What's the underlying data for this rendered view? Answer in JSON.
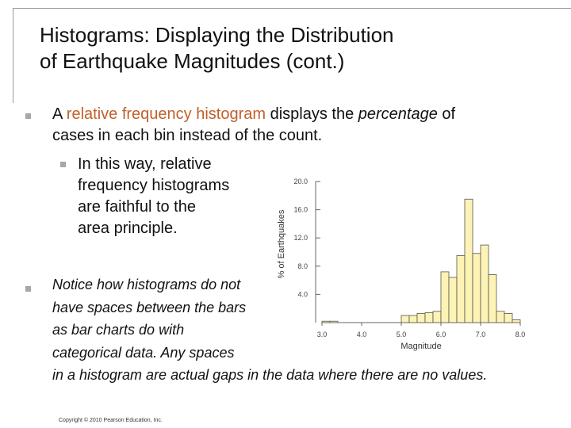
{
  "slide": {
    "title_line1": "Histograms: Displaying the Distribution",
    "title_line2": "of Earthquake Magnitudes (cont.)",
    "bullet1": {
      "before": "A ",
      "highlight": "relative frequency histogram",
      "middle": " displays the ",
      "italic": "percentage",
      "after": " of",
      "line2": "cases in each bin instead of the count."
    },
    "sub_bullet": {
      "line1": "In this way, relative",
      "line2": "frequency histograms",
      "line3": "are faithful to the",
      "line4": "area principle."
    },
    "bullet2": {
      "line1": "Notice how histograms do not",
      "line2": "have spaces between the bars",
      "line3": "as bar charts do with",
      "line4": "categorical data.  Any spaces",
      "line5": "in a histogram are actual gaps in the data where there are no values."
    },
    "copyright": "Copyright © 2010 Pearson Education, Inc."
  },
  "colors": {
    "highlight": "#c0612b",
    "bar_fill": "#fdf3b5",
    "bar_stroke": "#555555",
    "bullet": "#a7a7a7"
  },
  "chart_data": {
    "type": "bar",
    "xlabel": "Magnitude",
    "ylabel": "% of Earthquakes",
    "xlim": [
      3.0,
      8.0
    ],
    "ylim": [
      0,
      20.0
    ],
    "x_ticks": [
      3.0,
      4.0,
      5.0,
      6.0,
      7.0,
      8.0
    ],
    "x_tick_labels": [
      "3.0",
      "4.0",
      "5.0",
      "6.0",
      "7.0",
      "8.0"
    ],
    "y_ticks": [
      4.0,
      8.0,
      12.0,
      16.0,
      20.0
    ],
    "y_tick_labels": [
      "4.0",
      "8.0",
      "12.0",
      "16.0",
      "20.0"
    ],
    "bin_width": 0.2,
    "bin_starts": [
      3.0,
      3.2,
      3.4,
      3.6,
      3.8,
      4.0,
      4.2,
      4.4,
      4.6,
      4.8,
      5.0,
      5.2,
      5.4,
      5.6,
      5.8,
      6.0,
      6.2,
      6.4,
      6.6,
      6.8,
      7.0,
      7.2,
      7.4,
      7.6,
      7.8
    ],
    "values": [
      0.2,
      0.2,
      0,
      0,
      0,
      0,
      0,
      0,
      0,
      0,
      1.0,
      1.0,
      1.3,
      1.4,
      1.6,
      7.2,
      6.4,
      9.5,
      17.5,
      9.8,
      11.0,
      6.8,
      1.6,
      1.3,
      0.4
    ]
  }
}
